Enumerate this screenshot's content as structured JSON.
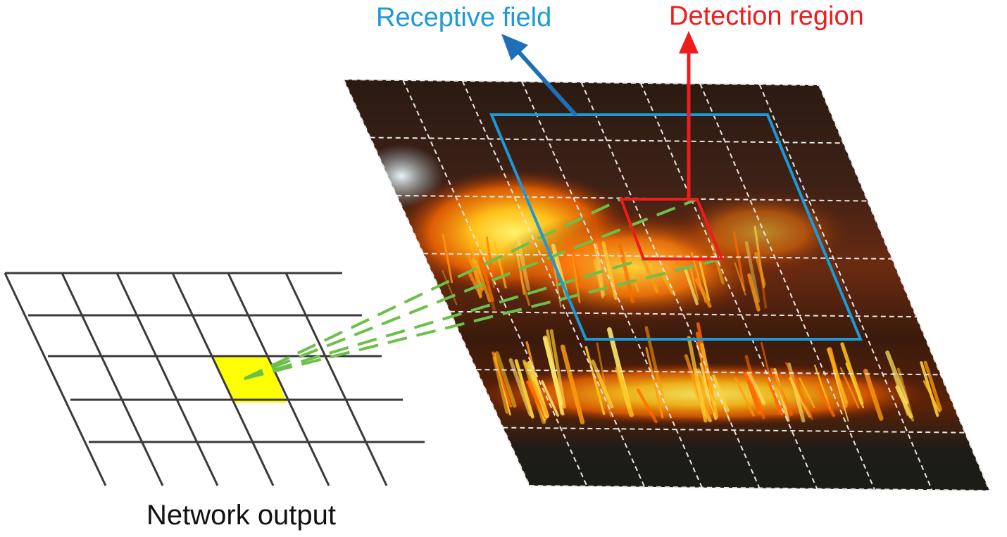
{
  "labels": {
    "receptive_field": "Receptive field",
    "detection_region": "Detection region",
    "network_output": "Network output"
  },
  "colors": {
    "receptive_field": "#1a9ad6",
    "receptive_field_arrow": "#1f6fb8",
    "detection_region": "#ee1c1c",
    "highlight_cell": "#ffff00",
    "projection_lines": "#6cc04a",
    "grid_lines": "#3a3a3a",
    "image_grid_lines": "#e6e6e6"
  },
  "image": {
    "description_icon": "wildfire-photo",
    "grid_rows": 7,
    "grid_cols": 8
  },
  "output_grid": {
    "rows": 4,
    "cols": 6
  }
}
